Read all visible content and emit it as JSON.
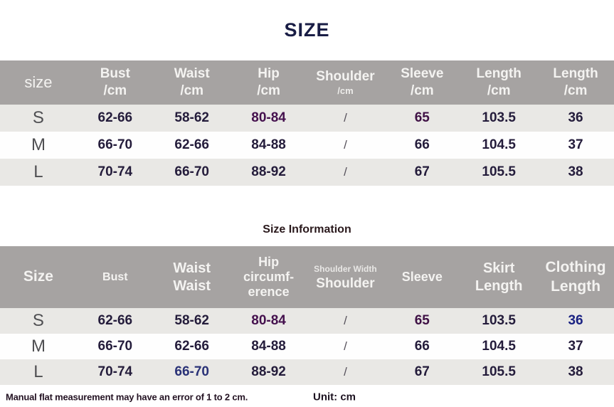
{
  "page": {
    "title": "SIZE",
    "subtitle": "Size Information",
    "footnote": "Manual flat measurement may have an error of 1 to 2 cm.",
    "unit_label": "Unit: cm"
  },
  "colors": {
    "header_bg": "#a6a3a2",
    "row_alt_bg": "#e9e8e5",
    "title_navy": "#191d45",
    "value_default": "#241c3b",
    "accent_purple": "#45114e",
    "accent_deep_purple": "#3f1145",
    "accent_blue": "#1b2383",
    "accent_navy_blue": "#2a3277"
  },
  "accent_styles": {
    "purple": "color:#45114e",
    "deep_purple": "color:#3f1145",
    "blue": "color:#1b2383",
    "navy_blue": "color:#2a3277"
  },
  "table1": {
    "headers": [
      [
        "size"
      ],
      [
        "Bust",
        "/cm"
      ],
      [
        "Waist",
        "/cm"
      ],
      [
        "Hip",
        "/cm"
      ],
      [
        "Shoulder",
        "/cm"
      ],
      [
        "Sleeve",
        "/cm"
      ],
      [
        "Length",
        "/cm"
      ],
      [
        "Length",
        "/cm"
      ]
    ],
    "rows": [
      {
        "size": "S",
        "cells": [
          "62-66",
          "58-62",
          "80-84",
          "/",
          "65",
          "103.5",
          "36"
        ]
      },
      {
        "size": "M",
        "cells": [
          "66-70",
          "62-66",
          "84-88",
          "/",
          "66",
          "104.5",
          "37"
        ]
      },
      {
        "size": "L",
        "cells": [
          "70-74",
          "66-70",
          "88-92",
          "/",
          "67",
          "105.5",
          "38"
        ]
      }
    ]
  },
  "table2": {
    "headers": [
      [
        "Size"
      ],
      [
        "Bust"
      ],
      [
        "Waist",
        "Waist"
      ],
      [
        "Hip",
        "circumf-",
        "erence"
      ],
      [
        "Shoulder Width",
        "Shoulder"
      ],
      [
        "Sleeve"
      ],
      [
        "Skirt",
        "Length"
      ],
      [
        "Clothing",
        "Length"
      ]
    ],
    "rows": [
      {
        "size": "S",
        "cells": [
          "62-66",
          "58-62",
          "80-84",
          "/",
          "65",
          "103.5",
          "36"
        ]
      },
      {
        "size": "M",
        "cells": [
          "66-70",
          "62-66",
          "84-88",
          "/",
          "66",
          "104.5",
          "37"
        ]
      },
      {
        "size": "L",
        "cells": [
          "70-74",
          "66-70",
          "88-92",
          "/",
          "67",
          "105.5",
          "38"
        ]
      }
    ]
  }
}
